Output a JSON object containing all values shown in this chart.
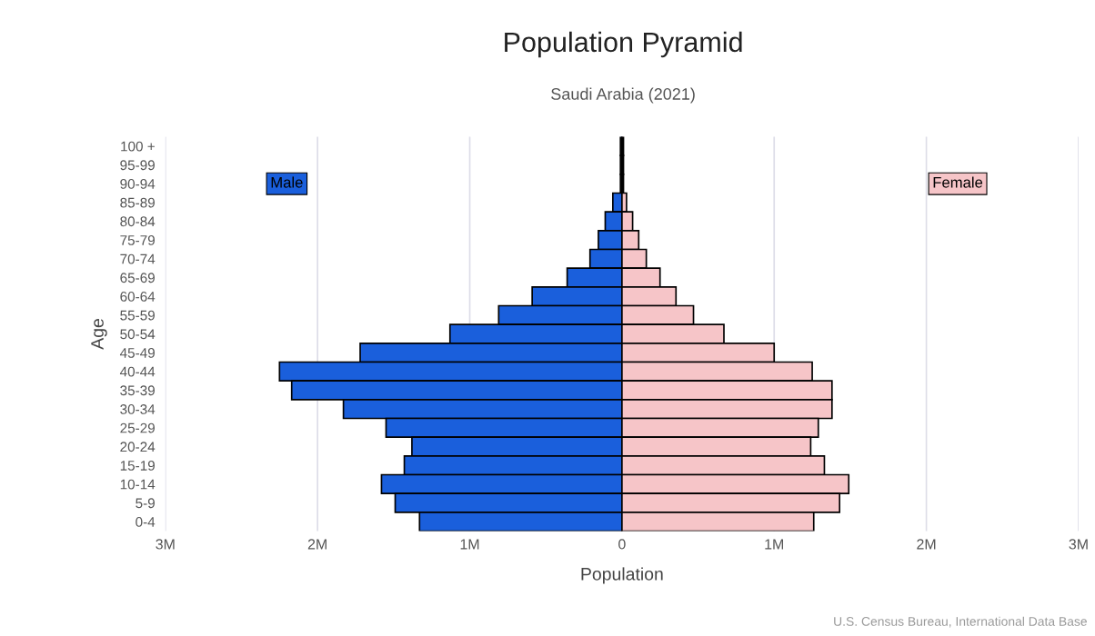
{
  "chart_data": {
    "type": "bar",
    "orientation": "horizontal",
    "title": "Population Pyramid",
    "subtitle": "Saudi Arabia (2021)",
    "xlabel": "Population",
    "ylabel": "Age",
    "categories": [
      "100 +",
      "95-99",
      "90-94",
      "85-89",
      "80-84",
      "75-79",
      "70-74",
      "65-69",
      "60-64",
      "55-59",
      "50-54",
      "45-49",
      "40-44",
      "35-39",
      "30-34",
      "25-29",
      "20-24",
      "15-19",
      "10-14",
      "5-9",
      "0-4"
    ],
    "series": [
      {
        "name": "Male",
        "color": "#1a5fdc",
        "values": [
          -10000,
          -10000,
          -10000,
          -60000,
          -110000,
          -155000,
          -210000,
          -360000,
          -590000,
          -810000,
          -1130000,
          -1720000,
          -2250000,
          -2170000,
          -1830000,
          -1550000,
          -1380000,
          -1430000,
          -1580000,
          -1490000,
          -1330000
        ]
      },
      {
        "name": "Female",
        "color": "#f6c5c8",
        "values": [
          10000,
          10000,
          10000,
          30000,
          70000,
          110000,
          160000,
          250000,
          355000,
          470000,
          670000,
          1000000,
          1250000,
          1380000,
          1380000,
          1290000,
          1240000,
          1330000,
          1490000,
          1430000,
          1260000
        ]
      }
    ],
    "xlim": [
      -3000000,
      3000000
    ],
    "xticks": [
      {
        "value": -3000000,
        "label": "3M"
      },
      {
        "value": -2000000,
        "label": "2M"
      },
      {
        "value": -1000000,
        "label": "1M"
      },
      0,
      {
        "value": 1000000,
        "label": "1M"
      },
      {
        "value": 2000000,
        "label": "2M"
      },
      {
        "value": 3000000,
        "label": "3M"
      }
    ],
    "stacked": true,
    "grid": "x",
    "legend": false,
    "annotations": [
      "U.S. Census Bureau, International Data Base"
    ]
  }
}
